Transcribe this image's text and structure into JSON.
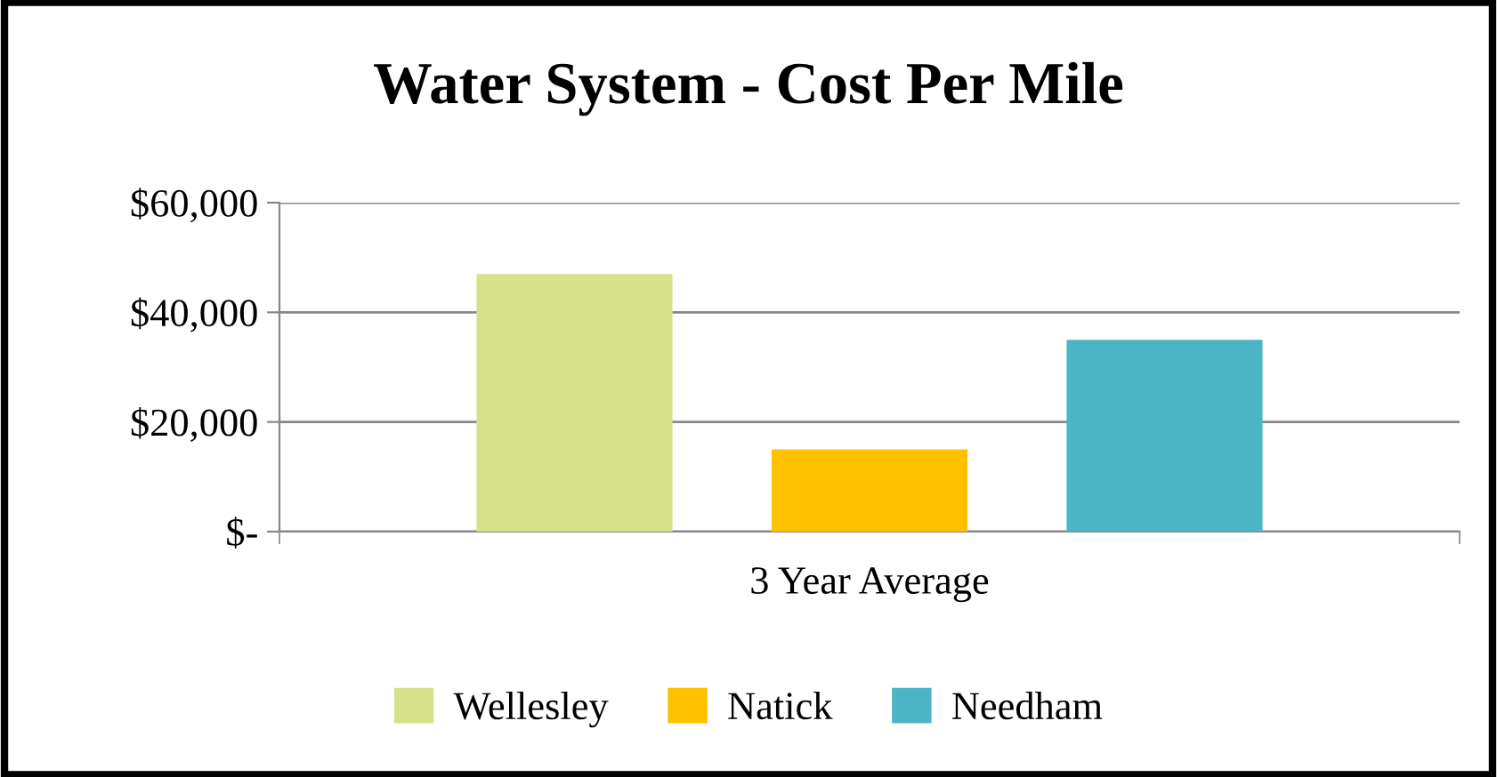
{
  "chart_data": {
    "type": "bar",
    "title": "Water System - Cost Per Mile",
    "categories": [
      "3 Year Average"
    ],
    "series": [
      {
        "name": "Wellesley",
        "color": "#d7e18a",
        "values": [
          47000
        ]
      },
      {
        "name": "Natick",
        "color": "#ffc000",
        "values": [
          15000
        ]
      },
      {
        "name": "Needham",
        "color": "#4bb5c5",
        "values": [
          35000
        ]
      }
    ],
    "ylim": [
      0,
      60000
    ],
    "yticks": [
      {
        "value": 0,
        "label": "$-"
      },
      {
        "value": 20000,
        "label": "$20,000"
      },
      {
        "value": 40000,
        "label": "$40,000"
      },
      {
        "value": 60000,
        "label": "$60,000"
      }
    ],
    "grid": "y",
    "legend": "bottom"
  }
}
